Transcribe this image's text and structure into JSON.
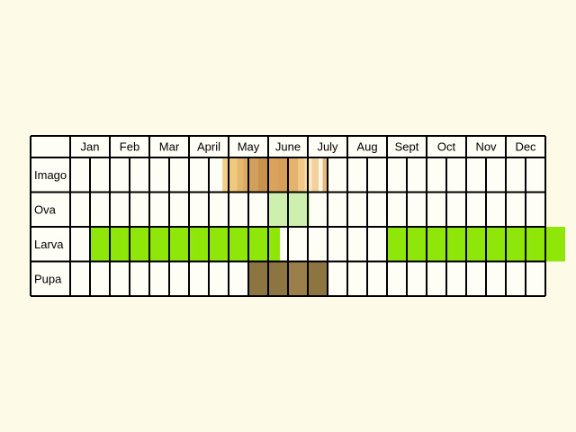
{
  "chart_data": {
    "type": "table",
    "months": [
      "Jan",
      "Feb",
      "Mar",
      "April",
      "May",
      "June",
      "July",
      "Aug",
      "Sept",
      "Oct",
      "Nov",
      "Dec"
    ],
    "columns_per_month": 2,
    "rows": [
      {
        "label": "Imago",
        "segments": [
          {
            "from": 7.69,
            "to": 8.0,
            "color": "#f2cf84"
          },
          {
            "from": 8.0,
            "to": 8.42,
            "color": "#f0ca7c"
          },
          {
            "from": 8.42,
            "to": 8.73,
            "color": "#e4b76e"
          },
          {
            "from": 8.73,
            "to": 9.0,
            "color": "#dcab62"
          },
          {
            "from": 9.0,
            "to": 9.5,
            "color": "#d19f5c"
          },
          {
            "from": 9.5,
            "to": 10.0,
            "color": "#c8914d"
          },
          {
            "from": 10.0,
            "to": 10.5,
            "color": "#d9a35b"
          },
          {
            "from": 10.5,
            "to": 11.0,
            "color": "#d69f59"
          },
          {
            "from": 11.0,
            "to": 11.5,
            "color": "#e3b36e"
          },
          {
            "from": 11.5,
            "to": 11.85,
            "color": "#f2c886"
          },
          {
            "from": 11.85,
            "to": 12.0,
            "color": "#f6d9a6"
          },
          {
            "from": 12.0,
            "to": 12.2,
            "color": "#fce9c4"
          },
          {
            "from": 12.2,
            "to": 12.55,
            "color": "#f2d29c"
          },
          {
            "from": 12.55,
            "to": 12.75,
            "color": "#fff6e6"
          },
          {
            "from": 12.75,
            "to": 13.0,
            "color": "#e6b87a"
          }
        ]
      },
      {
        "label": "Ova",
        "segments": [
          {
            "from": 10.0,
            "to": 12.1,
            "color": "#cdf0ae"
          }
        ]
      },
      {
        "label": "Larva",
        "segments": [
          {
            "from": 1.0,
            "to": 10.6,
            "color": "#8fe609"
          },
          {
            "from": 10.6,
            "to": 10.73,
            "color": "#ffffff"
          },
          {
            "from": 16.0,
            "to": 25.0,
            "color": "#8fe609"
          }
        ]
      },
      {
        "label": "Pupa",
        "segments": [
          {
            "from": 9.0,
            "to": 11.0,
            "color": "#8c7540"
          },
          {
            "from": 11.0,
            "to": 12.0,
            "color": "#9a7f4a"
          },
          {
            "from": 12.0,
            "to": 13.0,
            "color": "#8c7540"
          }
        ]
      }
    ]
  }
}
